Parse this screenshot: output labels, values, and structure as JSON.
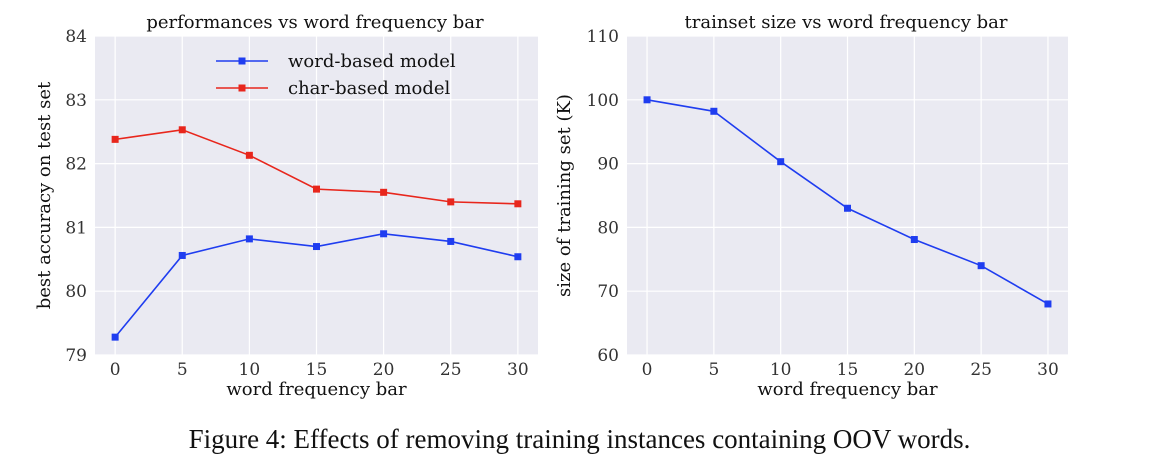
{
  "caption": "Figure 4: Effects of removing training instances containing OOV words.",
  "colors": {
    "word": "#1f3df0",
    "char": "#e8261c",
    "plot_bg": "#eaeaf2",
    "grid": "#ffffff"
  },
  "chart_data": [
    {
      "type": "line",
      "title": "performances vs word frequency bar",
      "xlabel": "word frequency bar",
      "ylabel": "best accuracy on test set",
      "x": [
        0,
        5,
        10,
        15,
        20,
        25,
        30
      ],
      "xticks": [
        "0",
        "5",
        "10",
        "15",
        "20",
        "25",
        "30"
      ],
      "yticks": [
        "79",
        "80",
        "81",
        "82",
        "83",
        "84"
      ],
      "xlim": [
        -1.5,
        31.5
      ],
      "ylim": [
        79,
        84
      ],
      "grid": true,
      "legend": "top-center",
      "series": [
        {
          "name": "word-based model",
          "color": "#1f3df0",
          "values": [
            79.28,
            80.56,
            80.82,
            80.7,
            80.9,
            80.78,
            80.54
          ]
        },
        {
          "name": "char-based model",
          "color": "#e8261c",
          "values": [
            82.38,
            82.53,
            82.13,
            81.6,
            81.55,
            81.4,
            81.37
          ]
        }
      ]
    },
    {
      "type": "line",
      "title": "trainset size vs word frequency bar",
      "xlabel": "word frequency bar",
      "ylabel": "size of training set (K)",
      "x": [
        0,
        5,
        10,
        15,
        20,
        25,
        30
      ],
      "xticks": [
        "0",
        "5",
        "10",
        "15",
        "20",
        "25",
        "30"
      ],
      "yticks": [
        "60",
        "70",
        "80",
        "90",
        "100",
        "110"
      ],
      "xlim": [
        -1.5,
        31.5
      ],
      "ylim": [
        60,
        110
      ],
      "grid": true,
      "series": [
        {
          "color": "#1f3df0",
          "values": [
            100.0,
            98.2,
            90.3,
            83.0,
            78.1,
            74.0,
            68.0
          ]
        }
      ]
    }
  ]
}
